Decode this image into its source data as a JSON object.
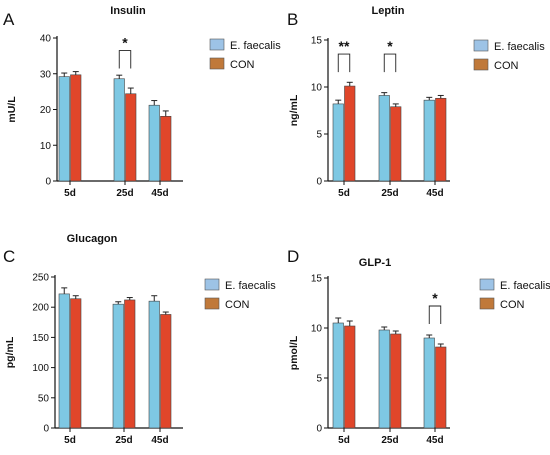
{
  "chart_data": [
    {
      "type": "bar",
      "panel": "A",
      "title": "Insulin",
      "ylabel": "mU/L",
      "xlabel": "",
      "categories": [
        "5d",
        "25d",
        "45d"
      ],
      "ylim": [
        0,
        40
      ],
      "yticks": [
        0,
        10,
        20,
        30,
        40
      ],
      "series": [
        {
          "name": "E. faecalis",
          "values": [
            29.2,
            28.6,
            21.2
          ],
          "errors": [
            1.0,
            1.0,
            1.3
          ],
          "color": "#7ec8e3"
        },
        {
          "name": "CON",
          "values": [
            29.7,
            24.4,
            18.1
          ],
          "errors": [
            0.9,
            1.6,
            1.5
          ],
          "color": "#e0462a"
        }
      ],
      "legend": "top-right",
      "significance": [
        {
          "category_index": 1,
          "label": "*",
          "top": 36.5
        }
      ]
    },
    {
      "type": "bar",
      "panel": "B",
      "title": "Leptin",
      "ylabel": "ng/mL",
      "xlabel": "",
      "categories": [
        "5d",
        "25d",
        "45d"
      ],
      "ylim": [
        0,
        15
      ],
      "yticks": [
        0,
        5,
        10,
        15
      ],
      "series": [
        {
          "name": "E. faecalis",
          "values": [
            8.2,
            9.1,
            8.6
          ],
          "errors": [
            0.4,
            0.3,
            0.3
          ],
          "color": "#7ec8e3"
        },
        {
          "name": "CON",
          "values": [
            10.1,
            7.9,
            8.8
          ],
          "errors": [
            0.4,
            0.3,
            0.3
          ],
          "color": "#e0462a"
        }
      ],
      "legend": "top-right",
      "significance": [
        {
          "category_index": 0,
          "label": "**",
          "top": 13.5
        },
        {
          "category_index": 1,
          "label": "*",
          "top": 13.5
        }
      ]
    },
    {
      "type": "bar",
      "panel": "C",
      "title": "Glucagon",
      "ylabel": "pg/mL",
      "xlabel": "",
      "categories": [
        "5d",
        "25d",
        "45d"
      ],
      "ylim": [
        0,
        250
      ],
      "yticks": [
        0,
        50,
        100,
        150,
        200,
        250
      ],
      "series": [
        {
          "name": "E. faecalis",
          "values": [
            222,
            205,
            210
          ],
          "errors": [
            10,
            4,
            9
          ],
          "color": "#7ec8e3"
        },
        {
          "name": "CON",
          "values": [
            214,
            212,
            188
          ],
          "errors": [
            5,
            4,
            4
          ],
          "color": "#e0462a"
        }
      ],
      "legend": "top-right",
      "significance": []
    },
    {
      "type": "bar",
      "panel": "D",
      "title": "GLP-1",
      "ylabel": "pmol/L",
      "xlabel": "",
      "categories": [
        "5d",
        "25d",
        "45d"
      ],
      "ylim": [
        0,
        15
      ],
      "yticks": [
        0,
        5,
        10,
        15
      ],
      "series": [
        {
          "name": "E. faecalis",
          "values": [
            10.5,
            9.8,
            9.0
          ],
          "errors": [
            0.5,
            0.3,
            0.3
          ],
          "color": "#7ec8e3"
        },
        {
          "name": "CON",
          "values": [
            10.2,
            9.4,
            8.1
          ],
          "errors": [
            0.5,
            0.3,
            0.3
          ],
          "color": "#e0462a"
        }
      ],
      "legend": "top-right",
      "significance": [
        {
          "category_index": 2,
          "label": "*",
          "top": 12.2
        }
      ]
    }
  ],
  "legend_swatch_colors": {
    "E. faecalis": "#9dc3e6",
    "CON": "#c0793a"
  }
}
